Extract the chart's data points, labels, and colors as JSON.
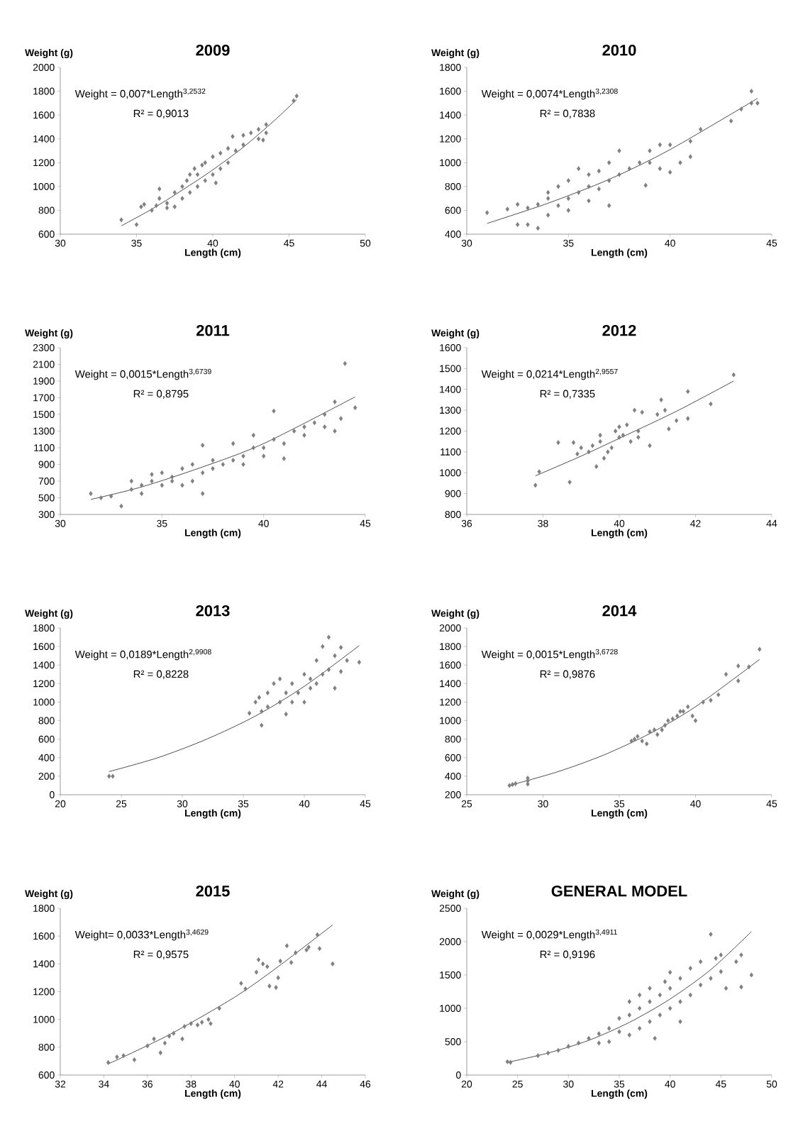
{
  "chart_data": [
    {
      "type": "scatter",
      "title": "2009",
      "xlabel": "Length (cm)",
      "ylabel": "Weight (g)",
      "annotations": [
        "Weight = 0,007*Length$^{3,2532}$",
        "R² = 0,9013"
      ],
      "xlim": [
        30,
        50
      ],
      "xticks": [
        30,
        35,
        40,
        45,
        50
      ],
      "ylim": [
        600,
        2000
      ],
      "yticks": [
        600,
        800,
        1000,
        1200,
        1400,
        1600,
        1800,
        2000
      ],
      "series": [
        {
          "type": "scatter",
          "color": "#7f7f7f",
          "marker": "diamond",
          "x": [
            34,
            35,
            35.3,
            35.5,
            36,
            36.3,
            36.5,
            36.5,
            37,
            37,
            37.5,
            37.5,
            38,
            38,
            38.3,
            38.5,
            38.5,
            38.8,
            39,
            39,
            39.3,
            39.5,
            39.5,
            40,
            40,
            40.2,
            40.5,
            40.5,
            41,
            41,
            41.3,
            41.5,
            42,
            42,
            42.5,
            43,
            43,
            43.3,
            43.5,
            43.5,
            45.3,
            45.5
          ],
          "values": [
            720,
            680,
            830,
            850,
            800,
            840,
            900,
            980,
            820,
            860,
            830,
            950,
            900,
            1000,
            1050,
            1100,
            950,
            1150,
            1000,
            1100,
            1180,
            1050,
            1200,
            1100,
            1250,
            1030,
            1150,
            1280,
            1200,
            1320,
            1420,
            1300,
            1350,
            1430,
            1450,
            1400,
            1480,
            1390,
            1520,
            1450,
            1720,
            1760
          ]
        },
        {
          "type": "line",
          "color": "#000000",
          "x": [
            34,
            36,
            38,
            40,
            42,
            44,
            45.5
          ],
          "values": [
            670,
            810,
            970,
            1140,
            1330,
            1550,
            1730
          ]
        }
      ]
    },
    {
      "type": "scatter",
      "title": "2010",
      "xlabel": "Length (cm)",
      "ylabel": "Weight (g)",
      "annotations": [
        "Weight = 0,0074*Length$^{3,2308}$",
        "R² = 0,7838"
      ],
      "xlim": [
        30,
        45
      ],
      "xticks": [
        30,
        35,
        40,
        45
      ],
      "ylim": [
        400,
        1800
      ],
      "yticks": [
        400,
        600,
        800,
        1000,
        1200,
        1400,
        1600,
        1800
      ],
      "series": [
        {
          "type": "scatter",
          "color": "#7f7f7f",
          "marker": "diamond",
          "x": [
            31,
            32,
            32.5,
            32.5,
            33,
            33,
            33.5,
            33.5,
            34,
            34,
            34,
            34.5,
            34.5,
            35,
            35,
            35,
            35.5,
            35.5,
            36,
            36,
            36,
            36.5,
            36.5,
            37,
            37,
            37,
            37.5,
            37.5,
            38,
            38.5,
            38.8,
            39,
            39,
            39.5,
            39.5,
            40,
            40,
            40.5,
            41,
            41,
            41.5,
            43,
            43.5,
            44,
            44,
            44.3
          ],
          "values": [
            580,
            610,
            650,
            480,
            620,
            480,
            450,
            650,
            560,
            700,
            750,
            640,
            800,
            700,
            850,
            600,
            750,
            950,
            800,
            900,
            680,
            780,
            930,
            850,
            1000,
            640,
            900,
            1100,
            950,
            1000,
            810,
            1100,
            1000,
            1150,
            950,
            920,
            1150,
            1000,
            1180,
            1050,
            1280,
            1350,
            1450,
            1600,
            1500,
            1500
          ]
        },
        {
          "type": "line",
          "color": "#000000",
          "x": [
            31,
            34,
            37,
            40,
            44.3
          ],
          "values": [
            490,
            660,
            860,
            1110,
            1540
          ]
        }
      ]
    },
    {
      "type": "scatter",
      "title": "2011",
      "xlabel": "Length (cm)",
      "ylabel": "Weight (g)",
      "annotations": [
        "Weight = 0,0015*Length$^{3,6739}$",
        "R² = 0,8795"
      ],
      "xlim": [
        30,
        45
      ],
      "xticks": [
        30,
        35,
        40,
        45
      ],
      "ylim": [
        300,
        2300
      ],
      "yticks": [
        300,
        500,
        700,
        900,
        1100,
        1300,
        1500,
        1700,
        1900,
        2100,
        2300
      ],
      "series": [
        {
          "type": "scatter",
          "color": "#7f7f7f",
          "marker": "diamond",
          "x": [
            31.5,
            32,
            32.5,
            33,
            33.5,
            33.5,
            34,
            34,
            34.5,
            34.5,
            35,
            35,
            35.5,
            35.5,
            36,
            36,
            36.5,
            36.5,
            37,
            37,
            37,
            37.5,
            37.5,
            38,
            38.5,
            38.5,
            39,
            39,
            39.5,
            39.5,
            40,
            40,
            40.5,
            40.5,
            41,
            41,
            41.5,
            42,
            42,
            42.5,
            43,
            43,
            43.5,
            43.5,
            43.8,
            44,
            44.5
          ],
          "values": [
            550,
            500,
            520,
            400,
            600,
            700,
            550,
            650,
            700,
            780,
            650,
            800,
            700,
            750,
            650,
            850,
            700,
            900,
            550,
            800,
            1130,
            850,
            950,
            900,
            950,
            1150,
            1000,
            900,
            1100,
            1250,
            1100,
            1000,
            1200,
            1540,
            1150,
            970,
            1300,
            1350,
            1250,
            1400,
            1350,
            1500,
            1650,
            1300,
            1450,
            2110,
            1580
          ]
        },
        {
          "type": "line",
          "color": "#000000",
          "x": [
            31.5,
            34,
            37,
            40,
            44.5
          ],
          "values": [
            480,
            630,
            870,
            1150,
            1710
          ]
        }
      ]
    },
    {
      "type": "scatter",
      "title": "2012",
      "xlabel": "Length (cm)",
      "ylabel": "Weight (g)",
      "annotations": [
        "Weight = 0,0214*Length$^{2,9557}$",
        "R² = 0,7335"
      ],
      "xlim": [
        36,
        44
      ],
      "xticks": [
        36,
        38,
        40,
        42,
        44
      ],
      "ylim": [
        800,
        1600
      ],
      "yticks": [
        800,
        900,
        1000,
        1100,
        1200,
        1300,
        1400,
        1500,
        1600
      ],
      "series": [
        {
          "type": "scatter",
          "color": "#7f7f7f",
          "marker": "diamond",
          "x": [
            37.8,
            37.9,
            38.4,
            38.7,
            38.8,
            38.9,
            39,
            39.2,
            39.3,
            39.4,
            39.5,
            39.5,
            39.6,
            39.7,
            39.8,
            39.9,
            40,
            40,
            40.1,
            40.2,
            40.3,
            40.4,
            40.5,
            40.5,
            40.6,
            40.8,
            41,
            41.1,
            41.2,
            41.3,
            41.5,
            41.8,
            41.8,
            42.4,
            43
          ],
          "values": [
            940,
            1005,
            1145,
            955,
            1145,
            1090,
            1120,
            1100,
            1130,
            1030,
            1150,
            1180,
            1070,
            1100,
            1120,
            1200,
            1220,
            1170,
            1180,
            1230,
            1150,
            1300,
            1200,
            1170,
            1290,
            1130,
            1280,
            1350,
            1300,
            1210,
            1250,
            1390,
            1260,
            1330,
            1470
          ]
        },
        {
          "type": "line",
          "color": "#000000",
          "x": [
            37.8,
            39,
            40,
            41.5,
            43
          ],
          "values": [
            985,
            1080,
            1165,
            1295,
            1440
          ]
        }
      ]
    },
    {
      "type": "scatter",
      "title": "2013",
      "xlabel": "Length (cm)",
      "ylabel": "Weight (g)",
      "annotations": [
        "Weight = 0,0189*Length$^{2,9908}$",
        "R² = 0,8228"
      ],
      "xlim": [
        20,
        45
      ],
      "xticks": [
        20,
        25,
        30,
        35,
        40,
        45
      ],
      "ylim": [
        0,
        1800
      ],
      "yticks": [
        0,
        200,
        400,
        600,
        800,
        1000,
        1200,
        1400,
        1600,
        1800
      ],
      "series": [
        {
          "type": "scatter",
          "color": "#7f7f7f",
          "marker": "diamond",
          "x": [
            24,
            24.3,
            35.5,
            36,
            36.3,
            36.5,
            36.5,
            37,
            37,
            37.5,
            38,
            38,
            38.5,
            38.5,
            39,
            39,
            39.5,
            40,
            40,
            40.5,
            40.5,
            41,
            41,
            41.5,
            41.5,
            42,
            42,
            42.5,
            42.5,
            43,
            43,
            43.5,
            44.5
          ],
          "values": [
            200,
            200,
            880,
            1000,
            1050,
            750,
            900,
            1100,
            950,
            1200,
            1000,
            1250,
            1100,
            870,
            1000,
            1200,
            1100,
            1000,
            1300,
            1150,
            1250,
            1200,
            1450,
            1300,
            1600,
            1700,
            1350,
            1150,
            1500,
            1330,
            1590,
            1450,
            1430
          ]
        },
        {
          "type": "line",
          "color": "#000000",
          "x": [
            24,
            28,
            32,
            36,
            40,
            44.5
          ],
          "values": [
            250,
            400,
            600,
            850,
            1170,
            1610
          ]
        }
      ]
    },
    {
      "type": "scatter",
      "title": "2014",
      "xlabel": "Length (cm)",
      "ylabel": "Weight (g)",
      "annotations": [
        "Weight = 0,0015*Length$^{3,6728}$",
        "R² = 0,9876"
      ],
      "xlim": [
        25,
        45
      ],
      "xticks": [
        25,
        30,
        35,
        40,
        45
      ],
      "ylim": [
        200,
        2000
      ],
      "yticks": [
        200,
        400,
        600,
        800,
        1000,
        1200,
        1400,
        1600,
        1800,
        2000
      ],
      "series": [
        {
          "type": "scatter",
          "color": "#7f7f7f",
          "marker": "diamond",
          "x": [
            27.8,
            28,
            28.2,
            29,
            29,
            29,
            35.8,
            36,
            36.2,
            36.5,
            36.8,
            37,
            37.3,
            37.5,
            37.8,
            38,
            38.2,
            38.5,
            38.8,
            39,
            39.2,
            39.5,
            39.8,
            40,
            40.5,
            41,
            41.5,
            42,
            42.8,
            42.8,
            43.5,
            44.2
          ],
          "values": [
            300,
            310,
            320,
            315,
            380,
            350,
            780,
            800,
            830,
            780,
            750,
            880,
            900,
            850,
            900,
            950,
            1000,
            1020,
            1050,
            1100,
            1100,
            1150,
            1050,
            1000,
            1200,
            1220,
            1280,
            1500,
            1430,
            1590,
            1580,
            1770
          ]
        },
        {
          "type": "line",
          "color": "#000000",
          "x": [
            27.8,
            31,
            34,
            37,
            40,
            44.2
          ],
          "values": [
            300,
            450,
            630,
            860,
            1150,
            1660
          ]
        }
      ]
    },
    {
      "type": "scatter",
      "title": "2015",
      "xlabel": "Length (cm)",
      "ylabel": "Weight (g)",
      "annotations": [
        "Weight= 0,0033*Length$^{3,4629}$",
        "R² = 0,9575"
      ],
      "xlim": [
        32,
        46
      ],
      "xticks": [
        32,
        34,
        36,
        38,
        40,
        42,
        44,
        46
      ],
      "ylim": [
        600,
        1800
      ],
      "yticks": [
        600,
        800,
        1000,
        1200,
        1400,
        1600,
        1800
      ],
      "series": [
        {
          "type": "scatter",
          "color": "#7f7f7f",
          "marker": "diamond",
          "x": [
            34.2,
            34.6,
            34.9,
            35.4,
            36,
            36.3,
            36.6,
            36.8,
            37,
            37.2,
            37.6,
            37.7,
            38,
            38.3,
            38.5,
            38.8,
            38.9,
            39.3,
            40.3,
            40.5,
            41,
            41.1,
            41.3,
            41.5,
            41.6,
            41.9,
            42,
            42.1,
            42.4,
            42.6,
            42.8,
            43.3,
            43.4,
            43.8,
            43.9,
            44.5
          ],
          "values": [
            690,
            730,
            740,
            710,
            810,
            860,
            760,
            830,
            880,
            900,
            860,
            950,
            970,
            960,
            980,
            1000,
            970,
            1080,
            1260,
            1220,
            1340,
            1430,
            1400,
            1380,
            1240,
            1230,
            1300,
            1420,
            1530,
            1410,
            1480,
            1500,
            1520,
            1610,
            1510,
            1400
          ]
        },
        {
          "type": "line",
          "color": "#000000",
          "x": [
            34.2,
            37,
            40,
            42,
            44.5
          ],
          "values": [
            680,
            890,
            1160,
            1380,
            1680
          ]
        }
      ]
    },
    {
      "type": "scatter",
      "title": "GENERAL MODEL",
      "xlabel": "Length (cm)",
      "ylabel": "Weight (g)",
      "annotations": [
        "Weight = 0,0029*Length$^{3,4911}$",
        "R² = 0,9196"
      ],
      "xlim": [
        20,
        50
      ],
      "xticks": [
        20,
        25,
        30,
        35,
        40,
        45,
        50
      ],
      "ylim": [
        0,
        2500
      ],
      "yticks": [
        0,
        500,
        1000,
        1500,
        2000,
        2500
      ],
      "series": [
        {
          "type": "scatter",
          "color": "#7f7f7f",
          "marker": "diamond",
          "x": [
            24,
            24.3,
            27,
            28,
            29,
            30,
            31,
            32,
            33,
            33,
            34,
            34,
            35,
            35,
            36,
            36,
            36,
            37,
            37,
            37,
            38,
            38,
            38,
            38.5,
            39,
            39,
            39.5,
            40,
            40,
            40,
            41,
            41,
            41,
            42,
            42,
            43,
            43,
            44,
            44,
            44.5,
            45,
            45,
            45.5,
            46.5,
            47,
            47,
            48
          ],
          "values": [
            200,
            190,
            290,
            330,
            370,
            430,
            480,
            550,
            480,
            620,
            700,
            500,
            650,
            850,
            600,
            900,
            1100,
            700,
            1000,
            1200,
            800,
            1100,
            1300,
            550,
            900,
            1200,
            1400,
            1000,
            1300,
            1540,
            1100,
            1450,
            800,
            1200,
            1600,
            1350,
            1700,
            1450,
            2110,
            1750,
            1550,
            1800,
            1300,
            1700,
            1320,
            1800,
            1500
          ]
        },
        {
          "type": "line",
          "color": "#000000",
          "x": [
            24,
            28,
            32,
            36,
            40,
            44,
            48
          ],
          "values": [
            190,
            330,
            520,
            790,
            1140,
            1580,
            2150
          ]
        }
      ]
    }
  ]
}
